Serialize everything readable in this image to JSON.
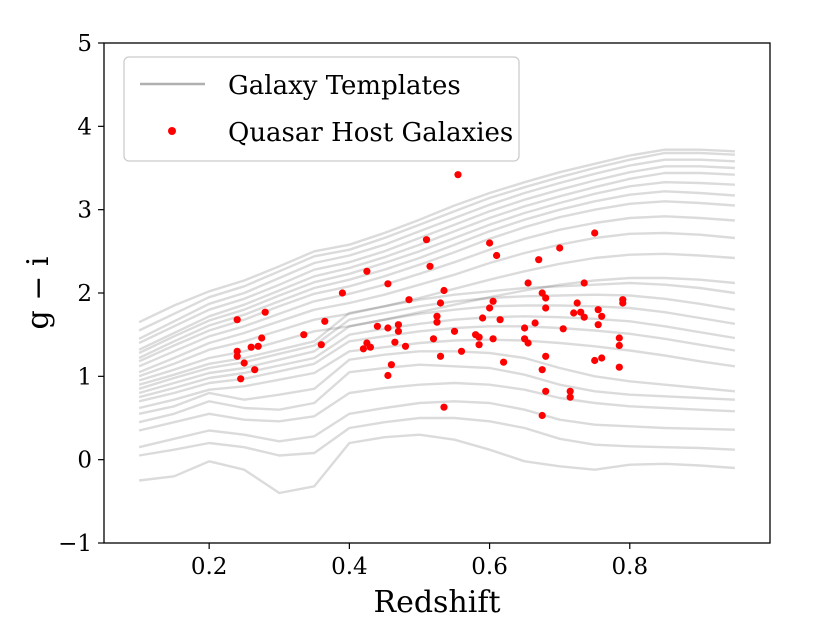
{
  "chart_data": {
    "type": "line+scatter",
    "xlabel": "Redshift",
    "ylabel": "g − i",
    "xlim": [
      0.05,
      1.0
    ],
    "ylim": [
      -1,
      5
    ],
    "xticks": [
      {
        "value": 0.2,
        "label": "0.2"
      },
      {
        "value": 0.4,
        "label": "0.4"
      },
      {
        "value": 0.6,
        "label": "0.6"
      },
      {
        "value": 0.8,
        "label": "0.8"
      }
    ],
    "yticks": [
      {
        "value": -1,
        "label": "−1"
      },
      {
        "value": 0,
        "label": "0"
      },
      {
        "value": 1,
        "label": "1"
      },
      {
        "value": 2,
        "label": "2"
      },
      {
        "value": 3,
        "label": "3"
      },
      {
        "value": 4,
        "label": "4"
      },
      {
        "value": 5,
        "label": "5"
      }
    ],
    "legend": {
      "placement": "top-left",
      "entries": [
        {
          "label": "Galaxy Templates",
          "kind": "line",
          "color": "#b0b0b0"
        },
        {
          "label": "Quasar Host Galaxies",
          "kind": "marker",
          "color": "#ff0000"
        }
      ]
    },
    "template_x": [
      0.1,
      0.15,
      0.2,
      0.25,
      0.3,
      0.35,
      0.4,
      0.45,
      0.5,
      0.55,
      0.6,
      0.65,
      0.7,
      0.75,
      0.8,
      0.85,
      0.9,
      0.95
    ],
    "templates": [
      {
        "name": "template-1",
        "values": [
          1.65,
          1.85,
          2.02,
          2.15,
          2.32,
          2.5,
          2.58,
          2.72,
          2.88,
          3.05,
          3.2,
          3.33,
          3.45,
          3.55,
          3.65,
          3.72,
          3.72,
          3.7
        ]
      },
      {
        "name": "template-2",
        "values": [
          1.55,
          1.75,
          1.95,
          2.08,
          2.26,
          2.44,
          2.52,
          2.66,
          2.82,
          2.98,
          3.14,
          3.27,
          3.39,
          3.5,
          3.6,
          3.68,
          3.68,
          3.66
        ]
      },
      {
        "name": "template-3",
        "values": [
          1.45,
          1.66,
          1.87,
          2.0,
          2.18,
          2.36,
          2.45,
          2.58,
          2.74,
          2.9,
          3.06,
          3.2,
          3.32,
          3.43,
          3.53,
          3.6,
          3.6,
          3.58
        ]
      },
      {
        "name": "template-4",
        "values": [
          1.4,
          1.6,
          1.8,
          1.93,
          2.1,
          2.28,
          2.37,
          2.5,
          2.66,
          2.82,
          2.98,
          3.12,
          3.24,
          3.35,
          3.45,
          3.52,
          3.52,
          3.5
        ]
      },
      {
        "name": "template-5",
        "values": [
          1.32,
          1.52,
          1.72,
          1.86,
          2.03,
          2.2,
          2.3,
          2.43,
          2.58,
          2.74,
          2.9,
          3.04,
          3.16,
          3.27,
          3.37,
          3.44,
          3.44,
          3.42
        ]
      },
      {
        "name": "template-6",
        "values": [
          1.28,
          1.48,
          1.67,
          1.8,
          1.97,
          2.13,
          2.23,
          2.36,
          2.5,
          2.66,
          2.82,
          2.96,
          3.08,
          3.19,
          3.28,
          3.33,
          3.32,
          3.3
        ]
      },
      {
        "name": "template-7",
        "values": [
          1.22,
          1.42,
          1.61,
          1.74,
          1.9,
          2.06,
          2.16,
          2.28,
          2.42,
          2.58,
          2.74,
          2.88,
          3.0,
          3.1,
          3.18,
          3.22,
          3.2,
          3.17
        ]
      },
      {
        "name": "template-8",
        "values": [
          1.18,
          1.37,
          1.55,
          1.68,
          1.84,
          1.99,
          2.08,
          2.2,
          2.34,
          2.49,
          2.65,
          2.79,
          2.91,
          3.0,
          3.07,
          3.1,
          3.08,
          3.05
        ]
      },
      {
        "name": "template-9",
        "values": [
          1.12,
          1.3,
          1.48,
          1.6,
          1.75,
          1.9,
          1.99,
          2.1,
          2.23,
          2.37,
          2.52,
          2.65,
          2.76,
          2.84,
          2.9,
          2.92,
          2.9,
          2.87
        ]
      },
      {
        "name": "template-10",
        "values": [
          1.05,
          1.22,
          1.4,
          1.52,
          1.66,
          1.8,
          1.88,
          1.98,
          2.1,
          2.22,
          2.36,
          2.48,
          2.58,
          2.66,
          2.71,
          2.72,
          2.7,
          2.66
        ]
      },
      {
        "name": "template-11",
        "values": [
          1.0,
          1.15,
          1.32,
          1.42,
          1.55,
          1.68,
          1.75,
          1.84,
          1.94,
          2.05,
          2.16,
          2.26,
          2.35,
          2.42,
          2.46,
          2.47,
          2.45,
          2.42
        ]
      },
      {
        "name": "template-12",
        "values": [
          0.95,
          1.08,
          1.22,
          1.3,
          1.42,
          1.54,
          1.6,
          1.68,
          1.77,
          1.86,
          1.95,
          2.03,
          2.1,
          2.15,
          2.18,
          2.18,
          2.16,
          2.12
        ]
      },
      {
        "name": "template-13",
        "values": [
          0.9,
          1.02,
          1.15,
          1.22,
          1.32,
          1.42,
          1.76,
          1.84,
          1.92,
          1.98,
          2.02,
          2.06,
          2.08,
          2.1,
          2.12,
          2.1,
          2.06,
          2.0
        ]
      },
      {
        "name": "template-14",
        "values": [
          0.85,
          0.98,
          1.1,
          1.17,
          1.27,
          1.37,
          1.68,
          1.76,
          1.84,
          1.9,
          1.94,
          1.96,
          1.97,
          1.98,
          1.97,
          1.93,
          1.87,
          1.8
        ]
      },
      {
        "name": "template-15",
        "values": [
          0.8,
          0.92,
          1.04,
          1.1,
          1.2,
          1.3,
          1.6,
          1.68,
          1.75,
          1.8,
          1.84,
          1.85,
          1.85,
          1.84,
          1.82,
          1.77,
          1.7,
          1.63
        ]
      },
      {
        "name": "template-16",
        "values": [
          0.75,
          0.86,
          0.98,
          1.04,
          1.13,
          1.22,
          1.5,
          1.57,
          1.63,
          1.68,
          1.71,
          1.72,
          1.71,
          1.69,
          1.66,
          1.6,
          1.53,
          1.46
        ]
      },
      {
        "name": "template-17",
        "values": [
          0.7,
          0.8,
          0.92,
          0.97,
          1.06,
          1.15,
          1.42,
          1.48,
          1.54,
          1.58,
          1.6,
          1.6,
          1.58,
          1.55,
          1.51,
          1.45,
          1.38,
          1.31
        ]
      },
      {
        "name": "template-18",
        "values": [
          0.62,
          0.72,
          0.84,
          0.88,
          0.96,
          1.04,
          1.3,
          1.35,
          1.4,
          1.43,
          1.44,
          1.43,
          1.4,
          1.36,
          1.31,
          1.25,
          1.18,
          1.12
        ]
      },
      {
        "name": "template-19",
        "values": [
          0.55,
          0.64,
          0.8,
          0.72,
          0.78,
          0.85,
          1.2,
          1.26,
          1.3,
          1.3,
          1.28,
          1.22,
          1.1,
          1.0,
          0.94,
          0.9,
          0.86,
          0.82
        ]
      },
      {
        "name": "template-20",
        "values": [
          0.45,
          0.55,
          0.7,
          0.62,
          0.6,
          0.68,
          1.05,
          1.1,
          1.14,
          1.12,
          1.1,
          1.02,
          0.9,
          0.82,
          0.78,
          0.76,
          0.74,
          0.72
        ]
      },
      {
        "name": "template-21",
        "values": [
          0.35,
          0.45,
          0.55,
          0.48,
          0.46,
          0.52,
          0.8,
          0.86,
          0.9,
          0.92,
          0.9,
          0.84,
          0.74,
          0.68,
          0.64,
          0.62,
          0.6,
          0.58
        ]
      },
      {
        "name": "template-22",
        "values": [
          0.15,
          0.25,
          0.35,
          0.3,
          0.22,
          0.28,
          0.55,
          0.62,
          0.68,
          0.7,
          0.68,
          0.6,
          0.48,
          0.42,
          0.4,
          0.38,
          0.37,
          0.36
        ]
      },
      {
        "name": "template-23",
        "values": [
          0.05,
          0.12,
          0.2,
          0.15,
          0.05,
          0.08,
          0.38,
          0.45,
          0.5,
          0.5,
          0.46,
          0.38,
          0.25,
          0.18,
          0.16,
          0.15,
          0.14,
          0.12
        ]
      },
      {
        "name": "template-24",
        "values": [
          -0.25,
          -0.2,
          -0.02,
          -0.12,
          -0.4,
          -0.32,
          0.2,
          0.27,
          0.3,
          0.24,
          0.12,
          -0.02,
          -0.08,
          -0.12,
          -0.06,
          -0.05,
          -0.07,
          -0.1
        ]
      }
    ],
    "points": [
      {
        "x": 0.24,
        "y": 1.68
      },
      {
        "x": 0.24,
        "y": 1.3
      },
      {
        "x": 0.24,
        "y": 1.24
      },
      {
        "x": 0.245,
        "y": 0.97
      },
      {
        "x": 0.25,
        "y": 1.16
      },
      {
        "x": 0.26,
        "y": 1.35
      },
      {
        "x": 0.265,
        "y": 1.08
      },
      {
        "x": 0.27,
        "y": 1.36
      },
      {
        "x": 0.275,
        "y": 1.46
      },
      {
        "x": 0.28,
        "y": 1.77
      },
      {
        "x": 0.335,
        "y": 1.5
      },
      {
        "x": 0.36,
        "y": 1.38
      },
      {
        "x": 0.365,
        "y": 1.66
      },
      {
        "x": 0.39,
        "y": 2.0
      },
      {
        "x": 0.42,
        "y": 1.33
      },
      {
        "x": 0.425,
        "y": 2.26
      },
      {
        "x": 0.425,
        "y": 1.4
      },
      {
        "x": 0.43,
        "y": 1.35
      },
      {
        "x": 0.44,
        "y": 1.6
      },
      {
        "x": 0.455,
        "y": 2.11
      },
      {
        "x": 0.455,
        "y": 1.58
      },
      {
        "x": 0.46,
        "y": 1.14
      },
      {
        "x": 0.455,
        "y": 1.01
      },
      {
        "x": 0.465,
        "y": 1.41
      },
      {
        "x": 0.47,
        "y": 1.62
      },
      {
        "x": 0.47,
        "y": 1.54
      },
      {
        "x": 0.48,
        "y": 1.36
      },
      {
        "x": 0.485,
        "y": 1.92
      },
      {
        "x": 0.51,
        "y": 2.64
      },
      {
        "x": 0.515,
        "y": 2.32
      },
      {
        "x": 0.52,
        "y": 1.45
      },
      {
        "x": 0.525,
        "y": 1.72
      },
      {
        "x": 0.53,
        "y": 1.88
      },
      {
        "x": 0.535,
        "y": 2.03
      },
      {
        "x": 0.525,
        "y": 1.65
      },
      {
        "x": 0.53,
        "y": 1.24
      },
      {
        "x": 0.535,
        "y": 0.63
      },
      {
        "x": 0.55,
        "y": 1.54
      },
      {
        "x": 0.555,
        "y": 3.42
      },
      {
        "x": 0.56,
        "y": 1.3
      },
      {
        "x": 0.58,
        "y": 1.5
      },
      {
        "x": 0.585,
        "y": 1.38
      },
      {
        "x": 0.585,
        "y": 1.47
      },
      {
        "x": 0.59,
        "y": 1.7
      },
      {
        "x": 0.6,
        "y": 2.6
      },
      {
        "x": 0.6,
        "y": 1.82
      },
      {
        "x": 0.605,
        "y": 1.9
      },
      {
        "x": 0.61,
        "y": 2.45
      },
      {
        "x": 0.605,
        "y": 1.45
      },
      {
        "x": 0.615,
        "y": 1.68
      },
      {
        "x": 0.62,
        "y": 1.17
      },
      {
        "x": 0.65,
        "y": 1.58
      },
      {
        "x": 0.655,
        "y": 2.12
      },
      {
        "x": 0.65,
        "y": 1.45
      },
      {
        "x": 0.655,
        "y": 1.4
      },
      {
        "x": 0.665,
        "y": 1.64
      },
      {
        "x": 0.67,
        "y": 2.4
      },
      {
        "x": 0.675,
        "y": 1.08
      },
      {
        "x": 0.675,
        "y": 2.0
      },
      {
        "x": 0.68,
        "y": 1.94
      },
      {
        "x": 0.68,
        "y": 1.82
      },
      {
        "x": 0.68,
        "y": 1.24
      },
      {
        "x": 0.68,
        "y": 0.82
      },
      {
        "x": 0.675,
        "y": 0.53
      },
      {
        "x": 0.7,
        "y": 2.54
      },
      {
        "x": 0.705,
        "y": 1.57
      },
      {
        "x": 0.715,
        "y": 0.82
      },
      {
        "x": 0.715,
        "y": 0.75
      },
      {
        "x": 0.72,
        "y": 1.76
      },
      {
        "x": 0.725,
        "y": 1.88
      },
      {
        "x": 0.73,
        "y": 1.77
      },
      {
        "x": 0.735,
        "y": 1.71
      },
      {
        "x": 0.735,
        "y": 2.12
      },
      {
        "x": 0.75,
        "y": 2.72
      },
      {
        "x": 0.755,
        "y": 1.8
      },
      {
        "x": 0.755,
        "y": 1.62
      },
      {
        "x": 0.76,
        "y": 1.72
      },
      {
        "x": 0.75,
        "y": 1.19
      },
      {
        "x": 0.76,
        "y": 1.22
      },
      {
        "x": 0.785,
        "y": 1.37
      },
      {
        "x": 0.785,
        "y": 1.46
      },
      {
        "x": 0.785,
        "y": 1.11
      },
      {
        "x": 0.79,
        "y": 1.88
      },
      {
        "x": 0.79,
        "y": 1.92
      }
    ]
  }
}
